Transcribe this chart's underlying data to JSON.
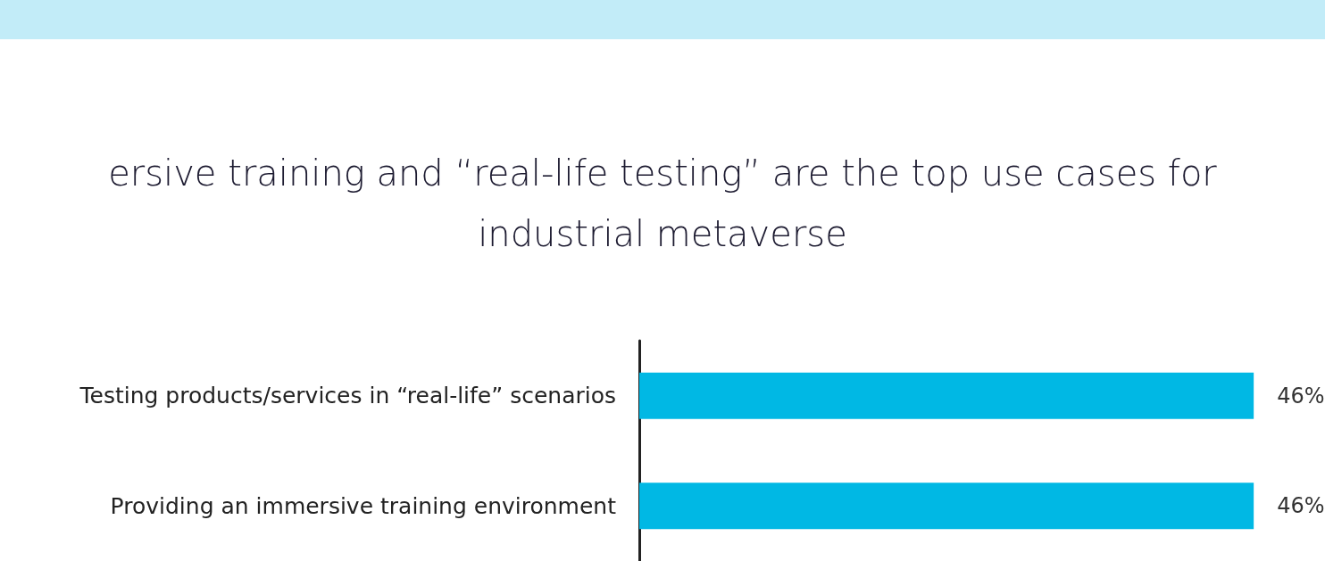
{
  "chart_data": {
    "type": "bar",
    "orientation": "horizontal",
    "title": "ersive training and “real-life testing” are the top use cases for industrial metaverse",
    "categories": [
      "Testing products/services in “real-life” scenarios",
      "Providing an immersive training environment"
    ],
    "values": [
      46,
      46
    ],
    "color": "#00b8e4",
    "value_labels": [
      "46%",
      "46%"
    ]
  }
}
